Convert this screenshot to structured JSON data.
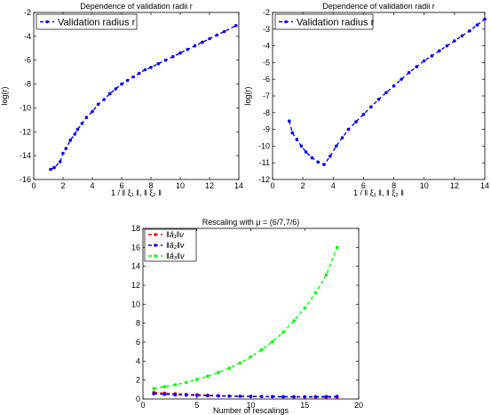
{
  "chart_data": [
    {
      "type": "line",
      "title": "Dependence of validation radii r",
      "xlabel": "1 / ‖ ξ₁ ‖, ‖ ξ₂ ‖",
      "ylabel": "log(r)",
      "xlim": [
        0,
        14
      ],
      "ylim": [
        -16,
        -2
      ],
      "xticks": [
        "0",
        "2",
        "4",
        "6",
        "8",
        "10",
        "12",
        "14"
      ],
      "yticks": [
        "-16",
        "-14",
        "-12",
        "-10",
        "-8",
        "-6",
        "-4",
        "-2"
      ],
      "legend_position": "top-left",
      "series": [
        {
          "name": "Validation radius r",
          "color": "#0000ff",
          "x": [
            1.15,
            1.4,
            1.8,
            2.0,
            2.2,
            2.5,
            2.8,
            3.0,
            3.3,
            3.6,
            4.0,
            4.4,
            4.8,
            5.2,
            5.6,
            6.0,
            6.4,
            6.8,
            7.2,
            7.6,
            8.0,
            8.5,
            9.0,
            9.5,
            10.0,
            10.5,
            11.0,
            11.5,
            12.0,
            12.5,
            13.0,
            13.8
          ],
          "y": [
            -15.15,
            -15.0,
            -14.5,
            -13.8,
            -13.4,
            -12.7,
            -12.2,
            -11.8,
            -11.3,
            -10.8,
            -10.3,
            -9.7,
            -9.3,
            -8.8,
            -8.4,
            -8.0,
            -7.7,
            -7.4,
            -7.1,
            -6.8,
            -6.6,
            -6.3,
            -6.0,
            -5.7,
            -5.4,
            -5.1,
            -4.8,
            -4.5,
            -4.2,
            -3.9,
            -3.6,
            -3.1
          ]
        }
      ]
    },
    {
      "type": "line",
      "title": "Dependence of validation radii r",
      "xlabel": "1 / ‖ ξ₁ ‖, ‖ ξ₂ ‖",
      "ylabel": "log(r)",
      "xlim": [
        0,
        14
      ],
      "ylim": [
        -12,
        -2
      ],
      "xticks": [
        "0",
        "2",
        "4",
        "6",
        "8",
        "10",
        "12",
        "14"
      ],
      "yticks": [
        "-12",
        "-11",
        "-10",
        "-9",
        "-8",
        "-7",
        "-6",
        "-5",
        "-4",
        "-3",
        "-2"
      ],
      "legend_position": "top-left",
      "series": [
        {
          "name": "Validation radius r",
          "color": "#0000ff",
          "x": [
            1.1,
            1.3,
            1.6,
            1.9,
            2.2,
            2.6,
            3.0,
            3.4,
            3.8,
            4.2,
            4.6,
            5.0,
            5.5,
            6.0,
            6.5,
            7.0,
            7.5,
            8.0,
            8.5,
            9.0,
            9.5,
            10.0,
            10.5,
            11.0,
            11.5,
            12.0,
            12.5,
            13.0,
            13.5,
            14.0
          ],
          "y": [
            -8.5,
            -9.2,
            -9.6,
            -10.0,
            -10.35,
            -10.7,
            -10.95,
            -11.1,
            -10.6,
            -10.0,
            -9.5,
            -9.0,
            -8.55,
            -8.1,
            -7.65,
            -7.2,
            -6.8,
            -6.4,
            -6.0,
            -5.6,
            -5.25,
            -4.9,
            -4.6,
            -4.3,
            -4.0,
            -3.7,
            -3.4,
            -3.1,
            -2.75,
            -2.4
          ]
        }
      ]
    },
    {
      "type": "line",
      "title": "Rescaling with μ = (6/7,7/6)",
      "xlabel": "Number of rescalings",
      "ylabel": "",
      "xlim": [
        0,
        20
      ],
      "ylim": [
        0,
        18
      ],
      "xticks": [
        "0",
        "5",
        "10",
        "15",
        "20"
      ],
      "yticks": [
        "0",
        "2",
        "4",
        "6",
        "8",
        "10",
        "12",
        "14",
        "16",
        "18"
      ],
      "legend_position": "top-left",
      "series": [
        {
          "name": "‖â₁‖ν",
          "color": "#ff0000",
          "x": [
            1,
            2,
            3,
            4,
            5,
            6,
            7,
            8,
            9,
            10,
            11,
            12,
            13,
            14,
            15,
            16,
            17,
            18
          ],
          "y": [
            0.7,
            0.62,
            0.55,
            0.5,
            0.45,
            0.4,
            0.36,
            0.33,
            0.3,
            0.28,
            0.26,
            0.24,
            0.22,
            0.21,
            0.2,
            0.19,
            0.18,
            0.18
          ]
        },
        {
          "name": "‖â₂‖ν",
          "color": "#0000ff",
          "x": [
            1,
            2,
            3,
            4,
            5,
            6,
            7,
            8,
            9,
            10,
            11,
            12,
            13,
            14,
            15,
            16,
            17,
            18
          ],
          "y": [
            0.55,
            0.5,
            0.45,
            0.41,
            0.38,
            0.35,
            0.32,
            0.3,
            0.28,
            0.27,
            0.26,
            0.25,
            0.25,
            0.24,
            0.24,
            0.25,
            0.26,
            0.27
          ]
        },
        {
          "name": "‖â₃‖ν",
          "color": "#00ff00",
          "x": [
            1,
            2,
            3,
            4,
            5,
            6,
            7,
            8,
            9,
            10,
            11,
            12,
            13,
            14,
            15,
            16,
            17,
            18
          ],
          "y": [
            1.1,
            1.3,
            1.5,
            1.75,
            2.05,
            2.4,
            2.8,
            3.25,
            3.8,
            4.45,
            5.2,
            6.05,
            7.05,
            8.25,
            9.6,
            11.2,
            13.1,
            16.0
          ]
        }
      ]
    }
  ]
}
